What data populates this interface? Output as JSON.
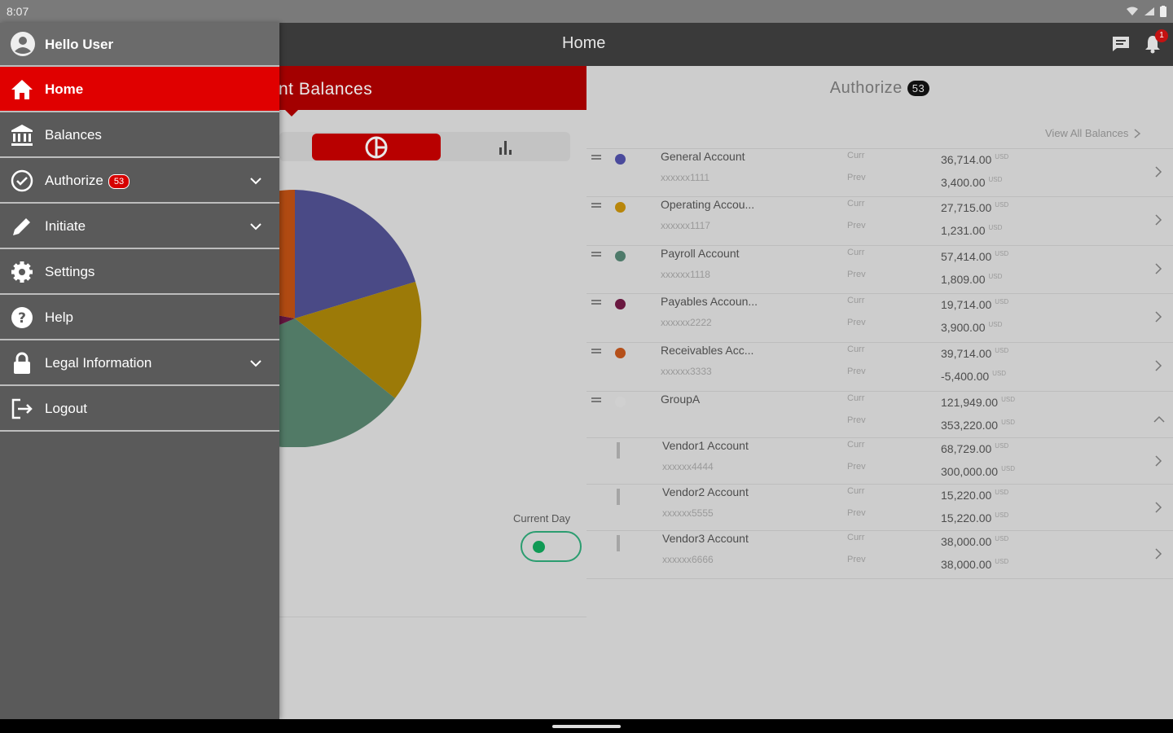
{
  "status_bar": {
    "time": "8:07"
  },
  "app_bar": {
    "title": "Home",
    "notification_count": "1"
  },
  "tabs": {
    "balances": "nt Balances",
    "authorize": "Authorize",
    "authorize_count": "53"
  },
  "chart_view": {
    "current_day_label": "Current Day",
    "current_day_on": true
  },
  "pie_colors": [
    "#4a4a86",
    "#9c7a08",
    "#517a66",
    "#63163f",
    "#b04a12"
  ],
  "accounts_panel": {
    "view_all": "View All Balances"
  },
  "accounts": [
    {
      "name": "General Account",
      "number": "xxxxxx1111",
      "curr_label": "Curr",
      "prev_label": "Prev",
      "curr": "36,714.00",
      "prev": "3,400.00",
      "currency": "USD",
      "color": "#4a4a9c"
    },
    {
      "name": "Operating Accou...",
      "number": "xxxxxx1117",
      "curr_label": "Curr",
      "prev_label": "Prev",
      "curr": "27,715.00",
      "prev": "1,231.00",
      "currency": "USD",
      "color": "#b8860b"
    },
    {
      "name": "Payroll Account",
      "number": "xxxxxx1118",
      "curr_label": "Curr",
      "prev_label": "Prev",
      "curr": "57,414.00",
      "prev": "1,809.00",
      "currency": "USD",
      "color": "#4e7a6a"
    },
    {
      "name": "Payables Accoun...",
      "number": "xxxxxx2222",
      "curr_label": "Curr",
      "prev_label": "Prev",
      "curr": "19,714.00",
      "prev": "3,900.00",
      "currency": "USD",
      "color": "#6a1840"
    },
    {
      "name": "Receivables Acc...",
      "number": "xxxxxx3333",
      "curr_label": "Curr",
      "prev_label": "Prev",
      "curr": "39,714.00",
      "prev": "-5,400.00",
      "currency": "USD",
      "color": "#b5501a"
    }
  ],
  "group": {
    "name": "GroupA",
    "curr_label": "Curr",
    "prev_label": "Prev",
    "curr": "121,949.00",
    "prev": "353,220.00",
    "currency": "USD",
    "color": "#d0d0d0"
  },
  "group_accounts": [
    {
      "name": "Vendor1 Account",
      "number": "xxxxxx4444",
      "curr_label": "Curr",
      "prev_label": "Prev",
      "curr": "68,729.00",
      "prev": "300,000.00",
      "currency": "USD"
    },
    {
      "name": "Vendor2 Account",
      "number": "xxxxxx5555",
      "curr_label": "Curr",
      "prev_label": "Prev",
      "curr": "15,220.00",
      "prev": "15,220.00",
      "currency": "USD"
    },
    {
      "name": "Vendor3 Account",
      "number": "xxxxxx6666",
      "curr_label": "Curr",
      "prev_label": "Prev",
      "curr": "38,000.00",
      "prev": "38,000.00",
      "currency": "USD"
    }
  ],
  "drawer": {
    "greeting": "Hello User",
    "items": [
      {
        "label": "Home",
        "icon": "home-icon"
      },
      {
        "label": "Balances",
        "icon": "bank-icon"
      },
      {
        "label": "Authorize",
        "icon": "check-circle-icon",
        "count": "53"
      },
      {
        "label": "Initiate",
        "icon": "pencil-icon"
      },
      {
        "label": "Settings",
        "icon": "gear-icon"
      },
      {
        "label": "Help",
        "icon": "help-icon"
      },
      {
        "label": "Legal Information",
        "icon": "lock-icon"
      },
      {
        "label": "Logout",
        "icon": "logout-icon"
      }
    ]
  }
}
